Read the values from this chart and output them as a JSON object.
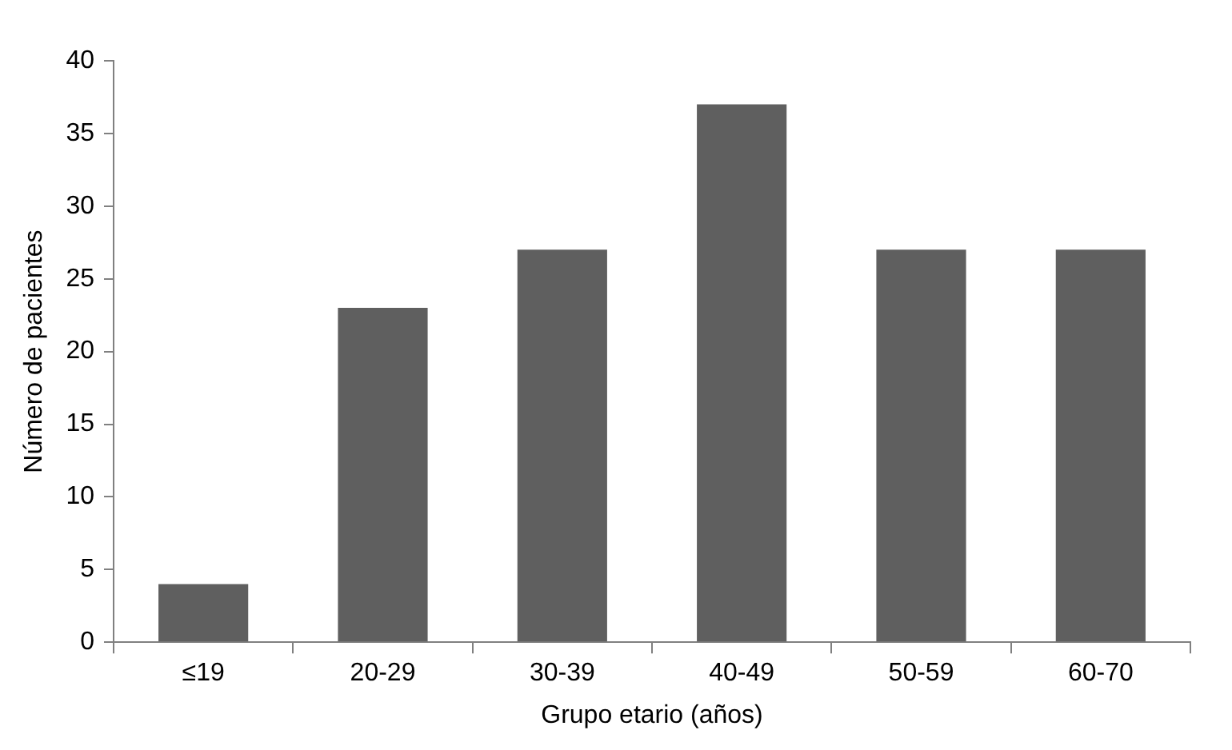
{
  "chart_data": {
    "type": "bar",
    "xlabel": "Grupo etario (años)",
    "ylabel": "Número de pacientes",
    "categories": [
      "≤19",
      "20-29",
      "30-39",
      "40-49",
      "50-59",
      "60-70"
    ],
    "values": [
      4,
      23,
      27,
      37,
      27,
      27
    ],
    "color": "#5f5f5f",
    "ylim": [
      0,
      40
    ],
    "yticks": [
      0,
      5,
      10,
      15,
      20,
      25,
      30,
      35,
      40
    ],
    "grid": false,
    "legend": false
  }
}
